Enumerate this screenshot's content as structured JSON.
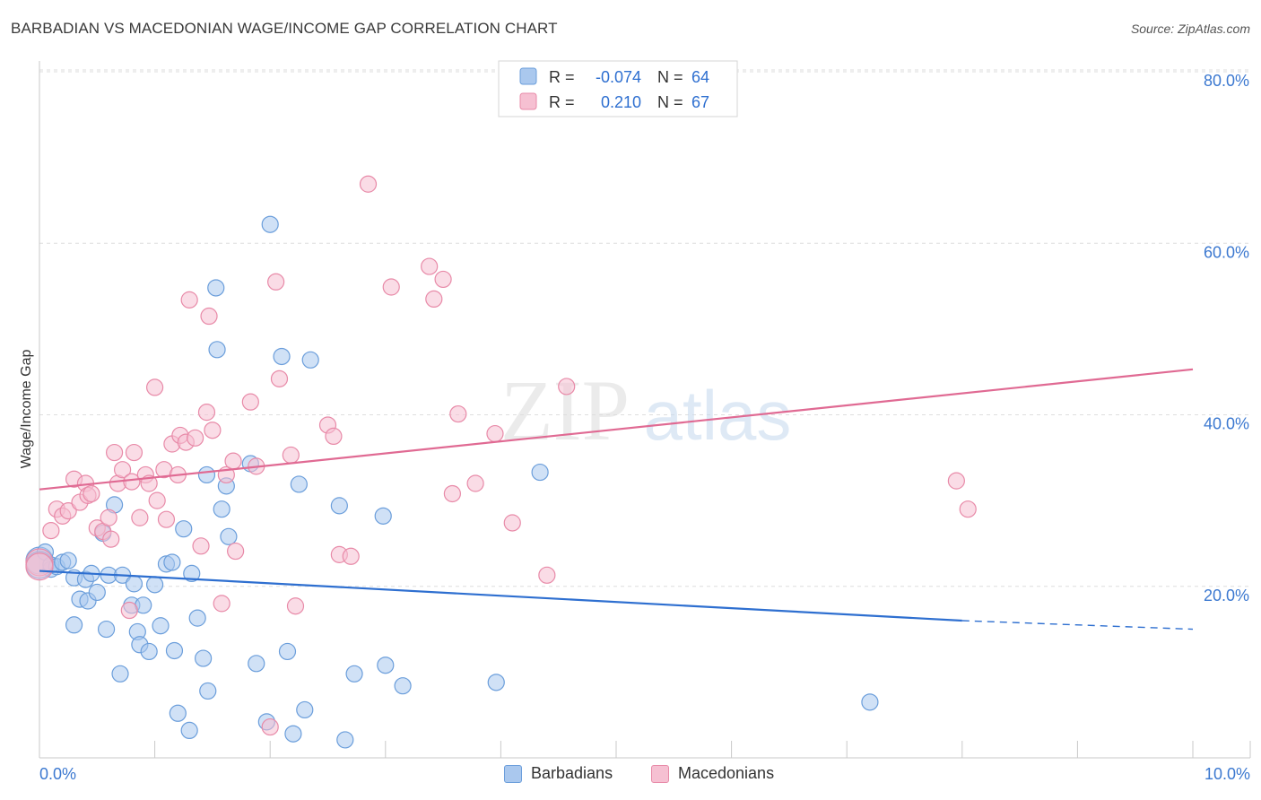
{
  "title": "BARBADIAN VS MACEDONIAN WAGE/INCOME GAP CORRELATION CHART",
  "source": "Source: ZipAtlas.com",
  "watermark": {
    "zip": "ZIP",
    "atlas": "atlas"
  },
  "chart_data": {
    "type": "scatter",
    "xlabel": "",
    "ylabel": "Wage/Income Gap",
    "xlim": [
      0,
      10
    ],
    "ylim": [
      0,
      82
    ],
    "x_tick_labels": [
      "0.0%",
      "10.0%"
    ],
    "y_ticks": [
      20,
      40,
      60,
      80
    ],
    "y_tick_labels": [
      "20.0%",
      "40.0%",
      "60.0%",
      "80.0%"
    ],
    "grid": true,
    "legend_position": "top-center",
    "legend_bottom": [
      "Barbadians",
      "Macedonians"
    ],
    "stats": [
      {
        "r_label": "R =",
        "r_value": "-0.074",
        "n_label": "N =",
        "n_value": "64"
      },
      {
        "r_label": "R =",
        "r_value": "0.210",
        "n_label": "N =",
        "n_value": "67"
      }
    ],
    "series": [
      {
        "name": "Barbadians",
        "color": "#6b9edb",
        "fill": "#aac8ee",
        "trend": {
          "x": [
            0,
            8.0
          ],
          "y": [
            21.8,
            16.0
          ],
          "dashed_to": [
            10,
            15.0
          ],
          "color": "#2e6fd0"
        },
        "points": [
          [
            0.0,
            23
          ],
          [
            0.05,
            24
          ],
          [
            0.1,
            22
          ],
          [
            0.1,
            22.5
          ],
          [
            0.15,
            22.3
          ],
          [
            0.2,
            22.8
          ],
          [
            0.25,
            23
          ],
          [
            0.3,
            15.5
          ],
          [
            0.3,
            21
          ],
          [
            0.35,
            18.5
          ],
          [
            0.4,
            20.8
          ],
          [
            0.42,
            18.3
          ],
          [
            0.45,
            21.5
          ],
          [
            0.5,
            19.3
          ],
          [
            0.55,
            26.2
          ],
          [
            0.58,
            15
          ],
          [
            0.6,
            21.3
          ],
          [
            0.65,
            29.5
          ],
          [
            0.7,
            9.8
          ],
          [
            0.72,
            21.3
          ],
          [
            0.8,
            17.8
          ],
          [
            0.82,
            20.3
          ],
          [
            0.85,
            14.7
          ],
          [
            0.87,
            13.2
          ],
          [
            0.9,
            17.8
          ],
          [
            0.95,
            12.4
          ],
          [
            1.0,
            20.2
          ],
          [
            1.05,
            15.4
          ],
          [
            1.1,
            22.6
          ],
          [
            1.15,
            22.8
          ],
          [
            1.17,
            12.5
          ],
          [
            1.2,
            5.2
          ],
          [
            1.25,
            26.7
          ],
          [
            1.3,
            3.2
          ],
          [
            1.32,
            21.5
          ],
          [
            1.37,
            16.3
          ],
          [
            1.42,
            11.6
          ],
          [
            1.45,
            33
          ],
          [
            1.46,
            7.8
          ],
          [
            1.53,
            54.8
          ],
          [
            1.54,
            47.6
          ],
          [
            1.58,
            29
          ],
          [
            1.62,
            31.7
          ],
          [
            1.64,
            25.8
          ],
          [
            1.83,
            34.3
          ],
          [
            1.88,
            11
          ],
          [
            1.97,
            4.2
          ],
          [
            2.0,
            62.2
          ],
          [
            2.1,
            46.8
          ],
          [
            2.15,
            12.4
          ],
          [
            2.2,
            2.8
          ],
          [
            2.25,
            31.9
          ],
          [
            2.3,
            5.6
          ],
          [
            2.35,
            46.4
          ],
          [
            2.6,
            29.4
          ],
          [
            2.65,
            2.1
          ],
          [
            2.73,
            9.8
          ],
          [
            2.98,
            28.2
          ],
          [
            3.0,
            10.8
          ],
          [
            3.15,
            8.4
          ],
          [
            3.96,
            8.8
          ],
          [
            4.34,
            33.3
          ],
          [
            7.2,
            6.5
          ],
          [
            0.0,
            22.5
          ]
        ]
      },
      {
        "name": "Macedonians",
        "color": "#e88aa8",
        "fill": "#f6c0d2",
        "trend": {
          "x": [
            0,
            10
          ],
          "y": [
            31.3,
            45.3
          ],
          "color": "#e06a93"
        },
        "points": [
          [
            0.0,
            22.8
          ],
          [
            0.1,
            26.5
          ],
          [
            0.15,
            29
          ],
          [
            0.2,
            28.2
          ],
          [
            0.25,
            28.8
          ],
          [
            0.3,
            32.5
          ],
          [
            0.35,
            29.8
          ],
          [
            0.4,
            32
          ],
          [
            0.42,
            30.6
          ],
          [
            0.45,
            30.8
          ],
          [
            0.5,
            26.8
          ],
          [
            0.55,
            26.4
          ],
          [
            0.6,
            28
          ],
          [
            0.62,
            25.5
          ],
          [
            0.65,
            35.6
          ],
          [
            0.68,
            32
          ],
          [
            0.72,
            33.6
          ],
          [
            0.78,
            17.2
          ],
          [
            0.8,
            32.2
          ],
          [
            0.82,
            35.6
          ],
          [
            0.87,
            28
          ],
          [
            0.92,
            33
          ],
          [
            0.95,
            32
          ],
          [
            1.0,
            43.2
          ],
          [
            1.02,
            30
          ],
          [
            1.08,
            33.6
          ],
          [
            1.1,
            27.8
          ],
          [
            1.15,
            36.6
          ],
          [
            1.2,
            33
          ],
          [
            1.22,
            37.6
          ],
          [
            1.27,
            36.8
          ],
          [
            1.3,
            53.4
          ],
          [
            1.35,
            37.3
          ],
          [
            1.4,
            24.7
          ],
          [
            1.45,
            40.3
          ],
          [
            1.47,
            51.5
          ],
          [
            1.5,
            38.2
          ],
          [
            1.58,
            18
          ],
          [
            1.62,
            33
          ],
          [
            1.68,
            34.6
          ],
          [
            1.7,
            24.1
          ],
          [
            1.83,
            41.5
          ],
          [
            1.88,
            34
          ],
          [
            2.0,
            3.6
          ],
          [
            2.05,
            55.5
          ],
          [
            2.08,
            44.2
          ],
          [
            2.18,
            35.3
          ],
          [
            2.22,
            17.7
          ],
          [
            2.5,
            38.8
          ],
          [
            2.55,
            37.5
          ],
          [
            2.6,
            23.7
          ],
          [
            2.7,
            23.5
          ],
          [
            2.85,
            66.9
          ],
          [
            3.05,
            54.9
          ],
          [
            3.38,
            57.3
          ],
          [
            3.42,
            53.5
          ],
          [
            3.5,
            55.8
          ],
          [
            3.58,
            30.8
          ],
          [
            3.63,
            40.1
          ],
          [
            3.78,
            32
          ],
          [
            3.95,
            37.8
          ],
          [
            4.1,
            27.4
          ],
          [
            4.4,
            21.3
          ],
          [
            4.57,
            43.3
          ],
          [
            7.95,
            32.3
          ],
          [
            8.05,
            29
          ],
          [
            0.0,
            22.3
          ]
        ]
      }
    ]
  }
}
